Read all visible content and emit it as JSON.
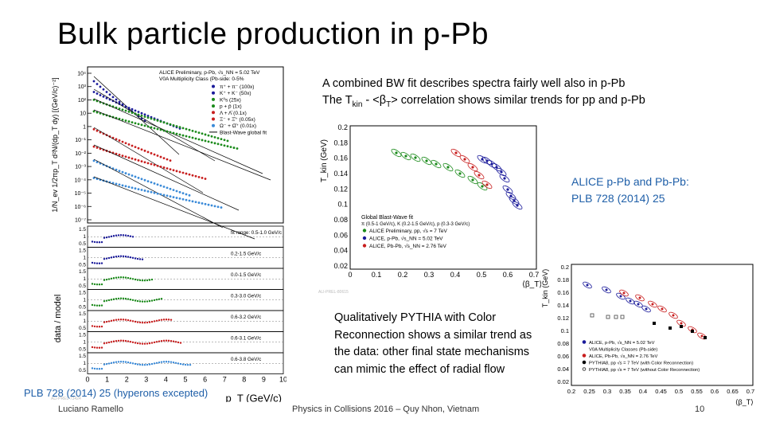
{
  "slide": {
    "title": "Bulk particle production in p-Pb",
    "bw_line1": "A combined BW fit describes spectra fairly well also in p-Pb",
    "bw_line2_a": "The T",
    "bw_line2_sub": "kin",
    "bw_line2_b": " - <β",
    "bw_line2_sub2": "T",
    "bw_line2_c": "> correlation shows similar trends for pp and p-Pb",
    "ref_ppb_pbpb_line1": "ALICE p-Pb and Pb-Pb:",
    "ref_ppb_pbpb_line2": "PLB 728 (2014) 25",
    "pythia_text": "Qualitatively PYTHIA with Color Reconnection shows a similar trend as the data: other final state mechanisms can mimic the effect of radial flow",
    "ref_spectra": "PLB 728 (2014) 25 (hyperons excepted)",
    "footer_author": "Luciano Ramello",
    "footer_conference": "Physics in Collisions 2016 – Quy Nhon, Vietnam",
    "footer_page": "10"
  },
  "figures": {
    "spectra": {
      "ylabel_top": "1/N_ev 1/2πp_T d²N/(dp_T dy) [(GeV/c)⁻²]",
      "ylabel_bottom": "data / model",
      "xlabel": "p_T (GeV/c)",
      "header_line1": "ALICE Preliminary, p-Pb, √s_NN = 5.02 TeV",
      "header_line2": "V0A Multiplicity Class (Pb-side: 0-5%",
      "legend": [
        "π⁺ + π⁻ (100x)",
        "K⁺ + K⁻ (50x)",
        "K⁰s (25x)",
        "p + p̄ (1x)",
        "Λ + Λ̄ (0.1x)",
        "Ξ⁻ + Ξ̄⁺ (0.05x)",
        "Ω⁻ + Ω̄⁺ (0.01x)",
        "Blast-Wave global fit"
      ],
      "y_ticks": [
        "10⁴",
        "10³",
        "10²",
        "10",
        "1",
        "10⁻¹",
        "10⁻²",
        "10⁻³",
        "10⁻⁴",
        "10⁻⁵",
        "10⁻⁶",
        "10⁻⁷"
      ],
      "x_ticks": [
        "0",
        "1",
        "2",
        "3",
        "4",
        "5",
        "6",
        "7",
        "8",
        "9",
        "10"
      ],
      "ratio_labels": [
        "fit range: 0.5-1.0 GeV/c",
        "0.2-1.5 GeV/c",
        "0.0-1.5 GeV/c",
        "0.3-3.0 GeV/c",
        "0.6-3.2 GeV/c",
        "0.6-3.1 GeV/c",
        "0.6-3.8 GeV/c"
      ],
      "ratio_ticks": [
        "1.5",
        "1",
        "0.5"
      ],
      "watermark": "ALI-PREL-73424"
    },
    "tkin_beta_left": {
      "ylabel": "T_kin (GeV)",
      "xlabel": "⟨β_T⟩",
      "y_ticks": [
        "0.2",
        "0.18",
        "0.16",
        "0.14",
        "0.12",
        "0.1",
        "0.08",
        "0.06",
        "0.04",
        "0.02"
      ],
      "x_ticks": [
        "0",
        "0.1",
        "0.2",
        "0.3",
        "0.4",
        "0.5",
        "0.6",
        "0.7"
      ],
      "legend_title1": "Global Blast-Wave fit",
      "legend_title2": "π (0.5-1 GeV/c), K (0.2-1.5 GeV/c), p (0.3-3 GeV/c)",
      "legend": [
        "ALICE Preliminary, pp, √s = 7 TeV",
        "ALICE, p-Pb, √s_NN = 5.02 TeV",
        "ALICE, Pb-Pb, √s_NN = 2.76 TeV"
      ],
      "watermark": "ALI-PREL-80615"
    },
    "tkin_beta_right": {
      "ylabel": "T_kin (GeV)",
      "xlabel": "⟨β_T⟩",
      "y_ticks": [
        "0.2",
        "0.18",
        "0.16",
        "0.14",
        "0.12",
        "0.1",
        "0.08",
        "0.06",
        "0.04",
        "0.02"
      ],
      "x_ticks": [
        "0.2",
        "0.25",
        "0.3",
        "0.35",
        "0.4",
        "0.45",
        "0.5",
        "0.55",
        "0.6",
        "0.65",
        "0.7"
      ],
      "legend": [
        "ALICE, p-Pb, √s_NN = 5.02 TeV",
        "V0A Multiplicity Classes (Pb-side)",
        "ALICE, Pb-Pb, √s_NN = 2.76 TeV",
        "PYTHIA8, pp √s = 7 TeV (with Color Reconnection)",
        "PYTHIA8, pp √s = 7 TeV (without Color Reconnection)"
      ]
    }
  }
}
